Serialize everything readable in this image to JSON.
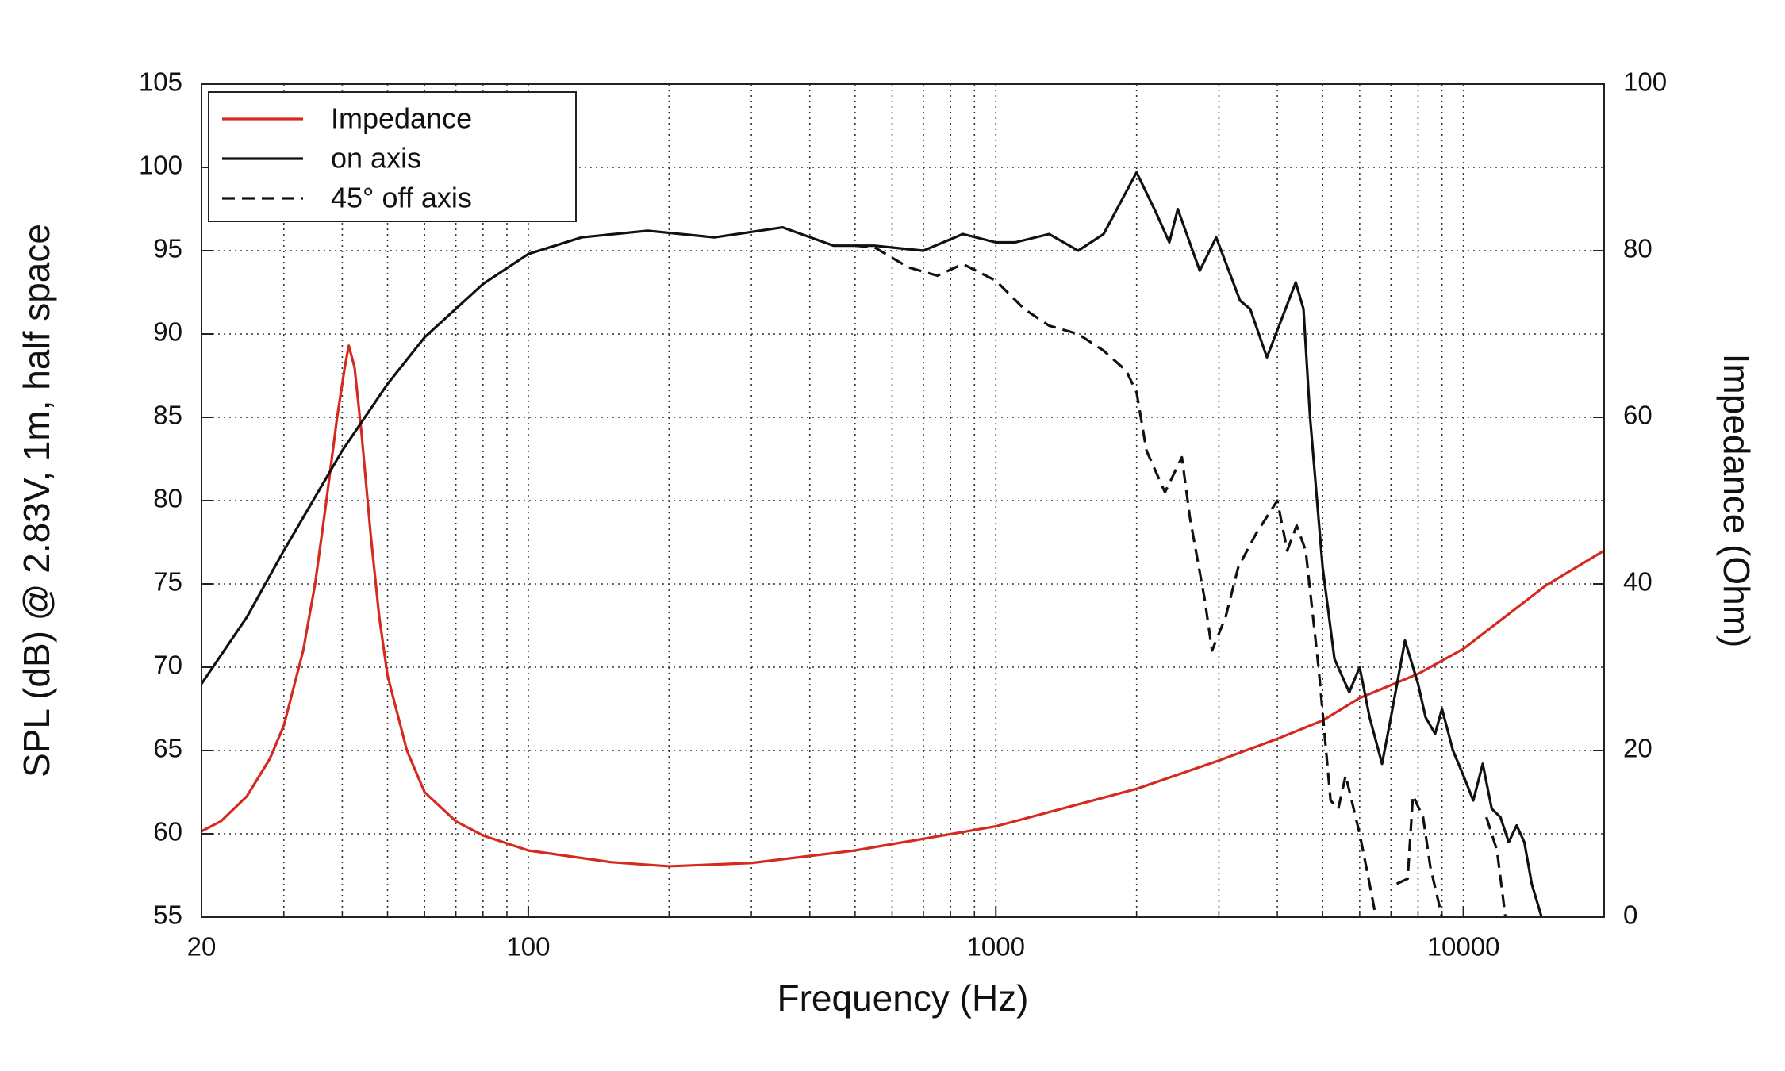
{
  "chart_data": {
    "type": "line",
    "xlabel": "Frequency (Hz)",
    "ylabel": "SPL (dB) @ 2.83V, 1m, half space",
    "y2label": "Impedance (Ohm)",
    "xscale": "log",
    "xlim": [
      20,
      20000
    ],
    "xticks": [
      20,
      100,
      1000,
      10000
    ],
    "ylim": [
      55,
      105
    ],
    "yticks": [
      55,
      60,
      65,
      70,
      75,
      80,
      85,
      90,
      95,
      100,
      105
    ],
    "y2lim": [
      0,
      100
    ],
    "y2ticks": [
      0,
      20,
      40,
      60,
      80,
      100
    ],
    "grid": true,
    "minor_grid": true,
    "legend": "upper left",
    "series": [
      {
        "name": "Impedance",
        "color": "#d42a20",
        "axis": "y2",
        "dash": "solid",
        "x": [
          20,
          22,
          25,
          28,
          30,
          33,
          35,
          37,
          39,
          40.5,
          41.3,
          42.5,
          44,
          46,
          48,
          50,
          55,
          60,
          70,
          80,
          100,
          150,
          200,
          300,
          500,
          1000,
          2000,
          3000,
          4000,
          5000,
          6000,
          8000,
          10000,
          15000,
          20000
        ],
        "values": [
          10.3,
          11.5,
          14.5,
          19,
          23,
          32,
          40,
          50,
          60,
          66,
          68.6,
          66,
          58,
          46,
          36,
          29,
          20,
          15,
          11.5,
          9.8,
          8,
          6.6,
          6.1,
          6.5,
          8,
          10.9,
          15.4,
          18.8,
          21.4,
          23.6,
          26.3,
          29.2,
          32.2,
          39.8,
          44
        ]
      },
      {
        "name": "on axis",
        "color": "#111111",
        "dash": "solid",
        "x": [
          20,
          25,
          30,
          40,
          50,
          60,
          80,
          100,
          130,
          180,
          250,
          350,
          450,
          550,
          700,
          850,
          1000,
          1100,
          1300,
          1500,
          1700,
          2000,
          2200,
          2350,
          2450,
          2730,
          2960,
          3330,
          3500,
          3800,
          4380,
          4550,
          4700,
          5000,
          5300,
          5700,
          6000,
          6300,
          6700,
          7000,
          7500,
          8000,
          8300,
          8700,
          9000,
          9500,
          10000,
          10500,
          11000,
          11500,
          12000,
          12500,
          13000,
          13500,
          14000,
          14700
        ],
        "values": [
          69,
          73,
          77,
          83,
          87,
          89.8,
          93,
          94.8,
          95.8,
          96.2,
          95.8,
          96.4,
          95.3,
          95.3,
          95,
          96,
          95.5,
          95.5,
          96,
          95,
          96,
          99.7,
          97.3,
          95.5,
          97.5,
          93.8,
          95.8,
          92,
          91.5,
          88.6,
          93.1,
          91.5,
          85,
          76,
          70.5,
          68.5,
          70,
          67,
          64.2,
          67,
          71.6,
          69,
          67,
          66,
          67.5,
          65,
          63.5,
          62,
          64.2,
          61.5,
          61,
          59.5,
          60.5,
          59.5,
          57,
          55
        ]
      },
      {
        "name": "45° off axis",
        "color": "#111111",
        "dash": "dashed",
        "x": [
          500,
          550,
          650,
          750,
          850,
          1000,
          1150,
          1300,
          1500,
          1700,
          1900,
          2000,
          2100,
          2300,
          2500,
          2600,
          2800,
          2900,
          3100,
          3300,
          3600,
          4000,
          4200,
          4400,
          4600,
          4900,
          5200,
          5400,
          5600,
          6000,
          6300,
          6500,
          7000,
          7200,
          7600,
          7800,
          8200,
          8500,
          9000,
          10800,
          11200,
          11800,
          12300
        ],
        "values": [
          95.3,
          95.2,
          94,
          93.5,
          94.2,
          93.2,
          91.5,
          90.5,
          90,
          89,
          87.8,
          86.5,
          83,
          80.5,
          82.6,
          79,
          74,
          71,
          73,
          76,
          78,
          80,
          77,
          78.5,
          77,
          70,
          62,
          61.5,
          63.5,
          60,
          57,
          55,
          null,
          57,
          57.3,
          62.3,
          61,
          58,
          55,
          null,
          61,
          59,
          55
        ]
      }
    ]
  }
}
